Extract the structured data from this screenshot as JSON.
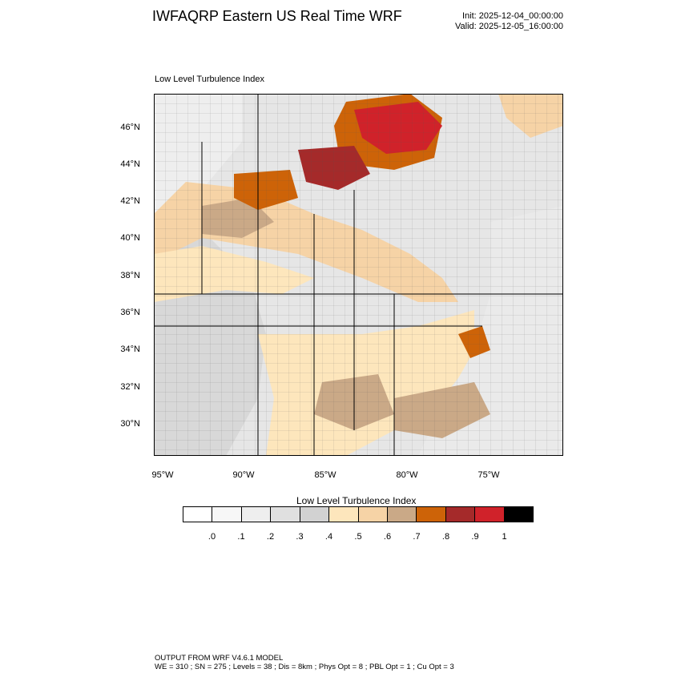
{
  "header": {
    "title": "IWFAQRP Eastern US Real Time WRF",
    "init": "Init: 2025-12-04_00:00:00",
    "valid": "Valid: 2025-12-05_16:00:00"
  },
  "panel": {
    "title": "Low Level Turbulence Index"
  },
  "map": {
    "lat_labels": [
      "46°N",
      "44°N",
      "42°N",
      "40°N",
      "38°N",
      "36°N",
      "34°N",
      "32°N",
      "30°N"
    ],
    "lon_labels": [
      "95°W",
      "90°W",
      "85°W",
      "80°W",
      "75°W"
    ]
  },
  "colorbar": {
    "title": "Low Level Turbulence Index",
    "colors": [
      "#ffffff",
      "#f7f7f7",
      "#eeeeee",
      "#e0e0e0",
      "#d2d2d2",
      "#fde6bc",
      "#f6d3a6",
      "#caa987",
      "#cd6308",
      "#a52a2a",
      "#d0222a",
      "#000000"
    ],
    "tick_labels": [
      ".0",
      ".1",
      ".2",
      ".3",
      ".4",
      ".5",
      ".6",
      ".7",
      ".8",
      ".9",
      "1"
    ]
  },
  "footer": {
    "line1": "OUTPUT FROM WRF V4.6.1 MODEL",
    "line2": "WE = 310 ; SN = 275 ; Levels = 38 ; Dis = 8km ; Phys Opt = 8 ; PBL Opt = 1 ; Cu Opt = 3"
  }
}
